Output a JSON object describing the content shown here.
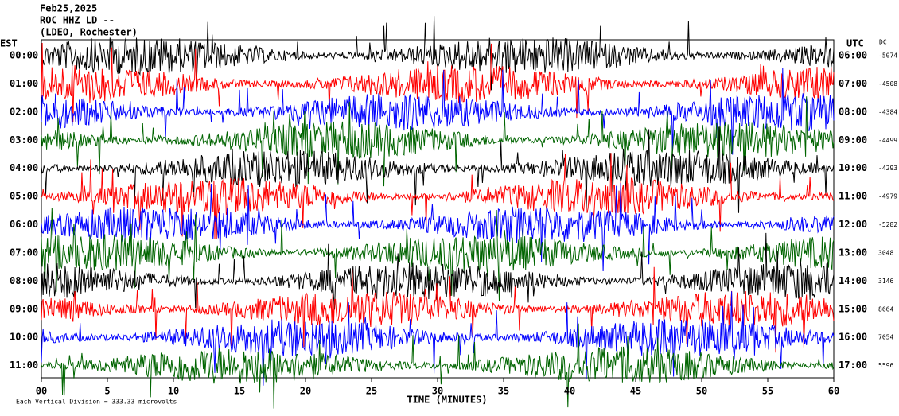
{
  "header": {
    "date": "Feb25,2025",
    "station": "ROC HHZ LD --",
    "network": "(LDEO, Rochester)"
  },
  "left_axis_title": "EST",
  "right_axis_title": "UTC",
  "dc_title": "DC",
  "rows": [
    {
      "est": "00:00",
      "utc": "06:00",
      "dc": "-5074",
      "color": "#000000"
    },
    {
      "est": "01:00",
      "utc": "07:00",
      "dc": "-4508",
      "color": "#ff0000"
    },
    {
      "est": "02:00",
      "utc": "08:00",
      "dc": "-4384",
      "color": "#0000ff"
    },
    {
      "est": "03:00",
      "utc": "09:00",
      "dc": "-4499",
      "color": "#006400"
    },
    {
      "est": "04:00",
      "utc": "10:00",
      "dc": "-4293",
      "color": "#000000"
    },
    {
      "est": "05:00",
      "utc": "11:00",
      "dc": "-4979",
      "color": "#ff0000"
    },
    {
      "est": "06:00",
      "utc": "12:00",
      "dc": "-5282",
      "color": "#0000ff"
    },
    {
      "est": "07:00",
      "utc": "13:00",
      "dc": "3048",
      "color": "#006400"
    },
    {
      "est": "08:00",
      "utc": "14:00",
      "dc": "3146",
      "color": "#000000"
    },
    {
      "est": "09:00",
      "utc": "15:00",
      "dc": "8664",
      "color": "#ff0000"
    },
    {
      "est": "10:00",
      "utc": "16:00",
      "dc": "7054",
      "color": "#0000ff"
    },
    {
      "est": "11:00",
      "utc": "17:00",
      "dc": "5596",
      "color": "#006400"
    }
  ],
  "x_axis": {
    "title": "TIME (MINUTES)",
    "ticks": [
      "00",
      "5",
      "10",
      "15",
      "20",
      "25",
      "30",
      "35",
      "40",
      "45",
      "50",
      "55",
      "60"
    ]
  },
  "footer": "Each Vertical Division = 333.33 microvolts"
}
